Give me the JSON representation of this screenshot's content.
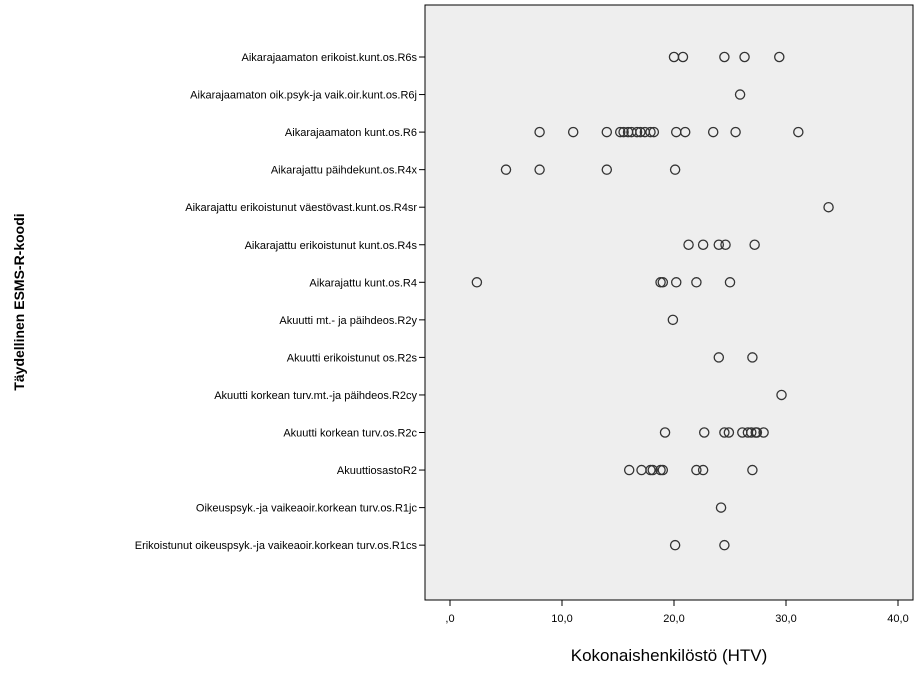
{
  "chart_data": {
    "type": "scatter",
    "title": "",
    "xlabel": "Kokonaishenkilöstö (HTV)",
    "ylabel": "Täydellinen ESMS-R-koodi",
    "xlim": [
      0,
      40
    ],
    "x_ticks": [
      {
        "value": 0,
        "label": ",0"
      },
      {
        "value": 10,
        "label": "10,0"
      },
      {
        "value": 20,
        "label": "20,0"
      },
      {
        "value": 30,
        "label": "30,0"
      },
      {
        "value": 40,
        "label": "40,0"
      }
    ],
    "grid": false,
    "background_color": "#eeeeee",
    "marker": "hollow-circle",
    "marker_color": "#333333",
    "categories": [
      "Aikarajaamaton erikoist.kunt.os.R6s",
      "Aikarajaamaton oik.psyk-ja vaik.oir.kunt.os.R6j",
      "Aikarajaamaton kunt.os.R6",
      "Aikarajattu päihdekunt.os.R4x",
      "Aikarajattu erikoistunut väestövast.kunt.os.R4sr",
      "Aikarajattu erikoistunut kunt.os.R4s",
      "Aikarajattu kunt.os.R4",
      "Akuutti mt.- ja päihdeos.R2y",
      "Akuutti erikoistunut os.R2s",
      "Akuutti korkean turv.mt.-ja päihdeos.R2cy",
      "Akuutti korkean turv.os.R2c",
      "AkuuttiosastoR2",
      "Oikeuspsyk.-ja vaikeaoir.korkean turv.os.R1jc",
      "Erikoistunut oikeuspsyk.-ja vaikeaoir.korkean turv.os.R1cs"
    ],
    "points": [
      [
        20.0,
        20.8,
        24.5,
        26.3,
        29.4
      ],
      [
        25.9
      ],
      [
        8.0,
        11.0,
        14.0,
        15.2,
        15.5,
        15.9,
        16.2,
        16.7,
        17.0,
        17.4,
        17.9,
        18.2,
        20.2,
        21.0,
        23.5,
        25.5,
        31.1
      ],
      [
        5.0,
        8.0,
        14.0,
        20.1
      ],
      [
        33.8
      ],
      [
        21.3,
        22.6,
        24.0,
        24.6,
        27.2
      ],
      [
        2.4,
        18.8,
        19.0,
        20.2,
        22.0,
        25.0
      ],
      [
        19.9
      ],
      [
        24.0,
        27.0
      ],
      [
        29.6
      ],
      [
        19.2,
        22.7,
        24.5,
        24.9,
        26.1,
        26.6,
        26.9,
        27.3,
        27.4,
        28.0
      ],
      [
        16.0,
        17.1,
        17.9,
        18.1,
        18.8,
        19.0,
        22.0,
        22.6,
        27.0
      ],
      [
        24.2
      ],
      [
        20.1,
        24.5
      ]
    ]
  }
}
